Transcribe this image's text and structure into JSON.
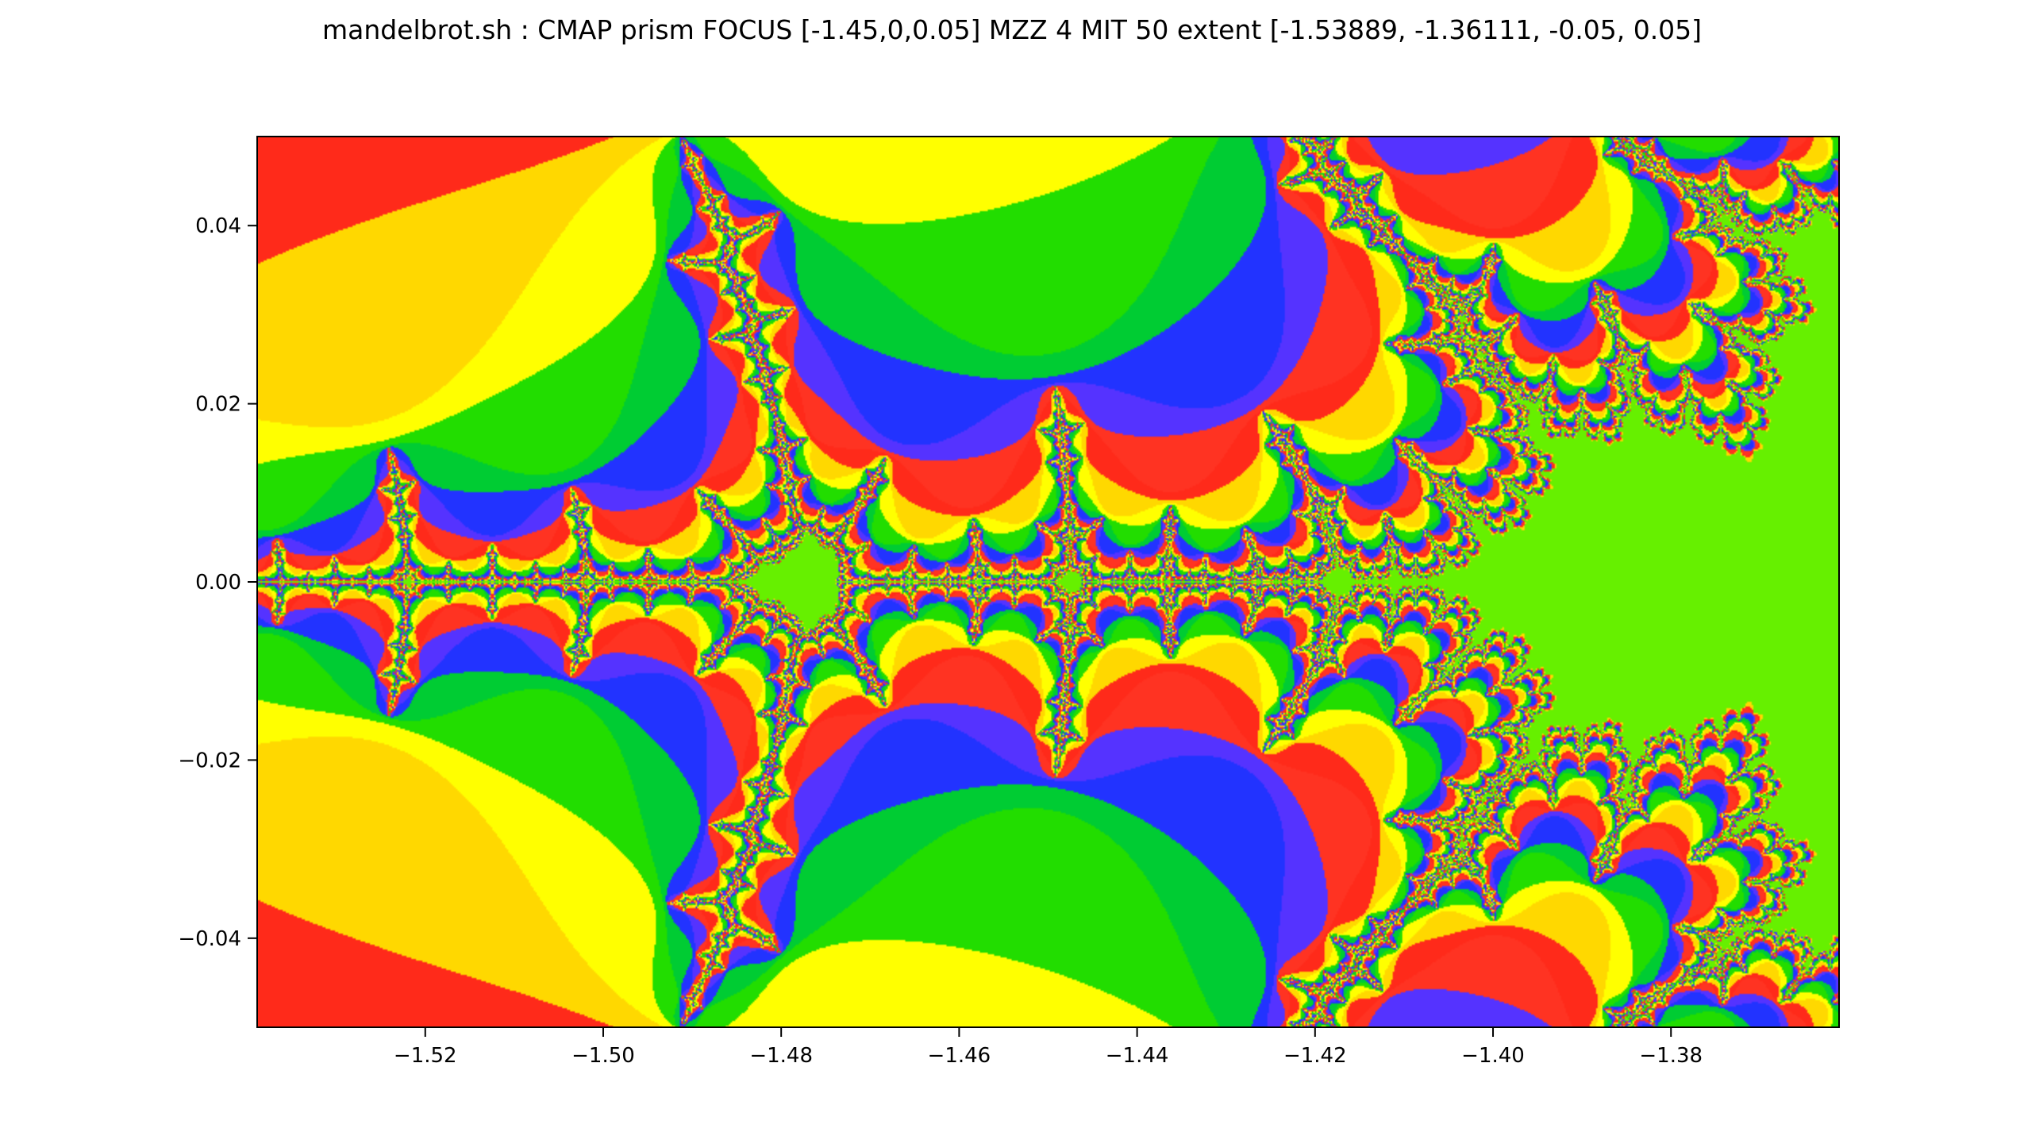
{
  "figure": {
    "title": "mandelbrot.sh : CMAP prism FOCUS [-1.45,0,0.05] MZZ 4 MIT 50 extent [-1.53889, -1.36111, -0.05, 0.05]"
  },
  "chart_data": {
    "type": "heatmap",
    "title": "mandelbrot.sh : CMAP prism FOCUS [-1.45,0,0.05] MZZ 4 MIT 50 extent [-1.53889, -1.36111, -0.05, 0.05]",
    "xlabel": "",
    "ylabel": "",
    "colormap": "prism",
    "focus": [
      -1.45,
      0,
      0.05
    ],
    "mzz": 4,
    "max_iterations": 50,
    "extent": [
      -1.53889,
      -1.36111,
      -0.05,
      0.05
    ],
    "xlim": [
      -1.53889,
      -1.36111
    ],
    "ylim": [
      -0.05,
      0.05
    ],
    "x_ticks": [
      -1.52,
      -1.5,
      -1.48,
      -1.46,
      -1.44,
      -1.42,
      -1.4,
      -1.38
    ],
    "x_tick_labels": [
      "−1.52",
      "−1.50",
      "−1.48",
      "−1.46",
      "−1.44",
      "−1.42",
      "−1.40",
      "−1.38"
    ],
    "y_ticks": [
      0.04,
      0.02,
      0.0,
      -0.02,
      -0.04
    ],
    "y_tick_labels": [
      "0.04",
      "0.02",
      "0.00",
      "−0.02",
      "−0.04"
    ],
    "interior_color": "#66f000",
    "palette": [
      "#ff2a1a",
      "#ffd800",
      "#ffff00",
      "#22dd00",
      "#00cc33",
      "#2233ff",
      "#5533ff",
      "#ff3322"
    ],
    "grid": false
  }
}
